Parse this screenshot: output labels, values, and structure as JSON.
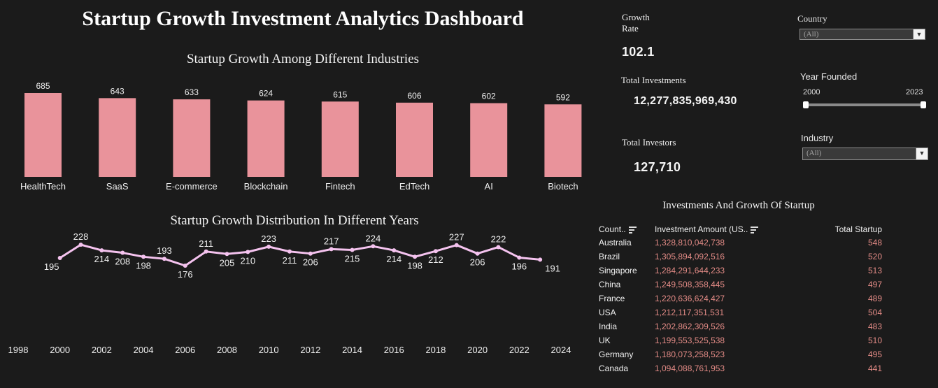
{
  "dashboard": {
    "title": "Startup Growth Investment Analytics Dashboard"
  },
  "kpis": {
    "growth_rate_label": "Growth Rate",
    "growth_rate_value": "102.1",
    "total_investments_label": "Total Investments",
    "total_investments_value": "12,277,835,969,430",
    "total_investors_label": "Total Investors",
    "total_investors_value": "127,710"
  },
  "filters": {
    "country_label": "Country",
    "country_value": "(All)",
    "year_label": "Year Founded",
    "year_min": "2000",
    "year_max": "2023",
    "industry_label": "Industry",
    "industry_value": "(All)"
  },
  "table": {
    "title": "Investments And Growth Of  Startup",
    "headers": [
      "Count..",
      "Investment Amount (US..",
      "Total Startup"
    ],
    "rows": [
      [
        "Australia",
        "1,328,810,042,738",
        "548"
      ],
      [
        "Brazil",
        "1,305,894,092,516",
        "520"
      ],
      [
        "Singapore",
        "1,284,291,644,233",
        "513"
      ],
      [
        "China",
        "1,249,508,358,445",
        "497"
      ],
      [
        "France",
        "1,220,636,624,427",
        "489"
      ],
      [
        "USA",
        "1,212,117,351,531",
        "504"
      ],
      [
        "India",
        "1,202,862,309,526",
        "483"
      ],
      [
        "UK",
        "1,199,553,525,538",
        "510"
      ],
      [
        "Germany",
        "1,180,073,258,523",
        "495"
      ],
      [
        "Canada",
        "1,094,088,761,953",
        "441"
      ]
    ]
  },
  "colors": {
    "bar": "#e9939b",
    "line": "#f5c3ef",
    "table_value": "#e38b86",
    "background": "#1b1b1b"
  },
  "chart_data": [
    {
      "type": "bar",
      "title": "Startup Growth Among Different Industries",
      "categories": [
        "HealthTech",
        "SaaS",
        "E-commerce",
        "Blockchain",
        "Fintech",
        "EdTech",
        "AI",
        "Biotech"
      ],
      "values": [
        685,
        643,
        633,
        624,
        615,
        606,
        602,
        592
      ],
      "xlabel": "",
      "ylabel": "",
      "ylim": [
        0,
        685
      ],
      "grid": false
    },
    {
      "type": "line",
      "title": "Startup Growth Distribution In Different Years",
      "x": [
        2000,
        2001,
        2002,
        2003,
        2004,
        2005,
        2006,
        2007,
        2008,
        2009,
        2010,
        2011,
        2012,
        2013,
        2014,
        2015,
        2016,
        2017,
        2018,
        2019,
        2020,
        2021,
        2022,
        2023
      ],
      "values": [
        195,
        228,
        214,
        208,
        198,
        193,
        176,
        211,
        205,
        210,
        223,
        211,
        206,
        217,
        215,
        224,
        214,
        198,
        212,
        227,
        206,
        222,
        196,
        191
      ],
      "xticks": [
        1998,
        2000,
        2002,
        2004,
        2006,
        2008,
        2010,
        2012,
        2014,
        2016,
        2018,
        2020,
        2022,
        2024
      ],
      "xlim": [
        1998,
        2024
      ],
      "xlabel": "",
      "ylabel": "",
      "grid": false
    }
  ]
}
